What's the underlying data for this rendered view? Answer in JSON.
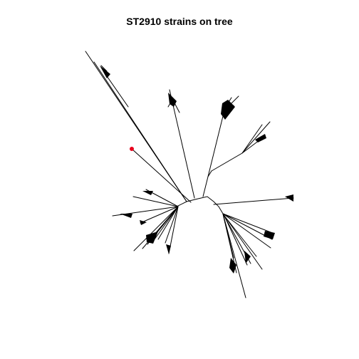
{
  "title": "ST2910 strains on tree",
  "tree": {
    "type": "unrooted",
    "edge_color": "#000000",
    "highlight_tip_color": "#e8001c",
    "highlight_tip_count": 1
  }
}
